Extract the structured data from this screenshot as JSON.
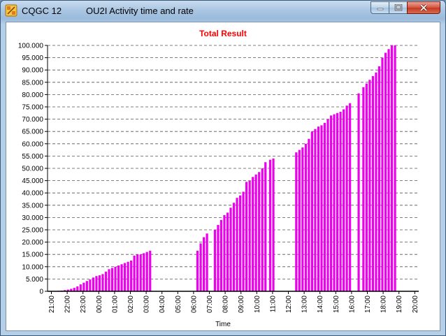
{
  "titlebar": {
    "app_title": "CQGC 12",
    "window_title": "OU2I Activity time and rate",
    "icons": {
      "app": "cqgc-app-icon",
      "minimize": "minimize-icon",
      "maximize": "maximize-icon",
      "close": "close-icon"
    }
  },
  "colors": {
    "bar": "#ee00ee",
    "title": "#ff0000",
    "grid": "#555555"
  },
  "chart_data": {
    "type": "bar",
    "title": "Total Result",
    "xlabel": "Time",
    "ylabel": "",
    "ylim": [
      0,
      100000
    ],
    "ytick_labels": [
      "0",
      "5.000",
      "10.000",
      "15.000",
      "20.000",
      "25.000",
      "30.000",
      "35.000",
      "40.000",
      "45.000",
      "50.000",
      "55.000",
      "60.000",
      "65.000",
      "70.000",
      "75.000",
      "80.000",
      "85.000",
      "90.000",
      "95.000",
      "100.000"
    ],
    "xtick_labels": [
      "21:00",
      "22:00",
      "23:00",
      "00:00",
      "01:00",
      "02:00",
      "03:00",
      "04:00",
      "05:00",
      "06:00",
      "07:00",
      "08:00",
      "09:00",
      "10:00",
      "11:00",
      "12:00",
      "13:00",
      "14:00",
      "15:00",
      "16:00",
      "17:00",
      "18:00",
      "19:00",
      "20:00"
    ],
    "grid": "horizontal dashed",
    "legend": "none",
    "x_unit_note": "hours after 21:00",
    "points": [
      [
        0.25,
        100
      ],
      [
        0.45,
        200
      ],
      [
        0.65,
        300
      ],
      [
        0.85,
        500
      ],
      [
        1.05,
        700
      ],
      [
        1.25,
        1000
      ],
      [
        1.45,
        1400
      ],
      [
        1.65,
        2000
      ],
      [
        1.85,
        2800
      ],
      [
        2.05,
        3500
      ],
      [
        2.25,
        4200
      ],
      [
        2.45,
        4800
      ],
      [
        2.65,
        5600
      ],
      [
        2.85,
        6200
      ],
      [
        3.05,
        6500
      ],
      [
        3.25,
        7000
      ],
      [
        3.45,
        8000
      ],
      [
        3.65,
        9000
      ],
      [
        3.85,
        9500
      ],
      [
        4.05,
        10000
      ],
      [
        4.25,
        10500
      ],
      [
        4.45,
        11000
      ],
      [
        4.65,
        11500
      ],
      [
        4.85,
        12000
      ],
      [
        5.05,
        12500
      ],
      [
        5.25,
        14500
      ],
      [
        5.45,
        15000
      ],
      [
        5.65,
        15000
      ],
      [
        5.85,
        15500
      ],
      [
        6.05,
        16000
      ],
      [
        6.25,
        16500
      ],
      [
        9.25,
        16500
      ],
      [
        9.45,
        19500
      ],
      [
        9.65,
        22000
      ],
      [
        9.85,
        23500
      ],
      [
        10.35,
        25000
      ],
      [
        10.55,
        27000
      ],
      [
        10.75,
        29000
      ],
      [
        10.95,
        31000
      ],
      [
        11.15,
        32000
      ],
      [
        11.35,
        34000
      ],
      [
        11.55,
        36000
      ],
      [
        11.75,
        38000
      ],
      [
        11.95,
        39000
      ],
      [
        12.15,
        40500
      ],
      [
        12.35,
        44500
      ],
      [
        12.55,
        45000
      ],
      [
        12.75,
        46500
      ],
      [
        12.95,
        47500
      ],
      [
        13.15,
        48500
      ],
      [
        13.35,
        50000
      ],
      [
        13.55,
        52500
      ],
      [
        13.85,
        53500
      ],
      [
        14.05,
        54000
      ],
      [
        15.5,
        56500
      ],
      [
        15.7,
        57500
      ],
      [
        15.9,
        58500
      ],
      [
        16.1,
        60000
      ],
      [
        16.3,
        62000
      ],
      [
        16.5,
        65000
      ],
      [
        16.7,
        66000
      ],
      [
        16.9,
        67000
      ],
      [
        17.1,
        67500
      ],
      [
        17.3,
        68500
      ],
      [
        17.5,
        70000
      ],
      [
        17.7,
        71500
      ],
      [
        17.9,
        72000
      ],
      [
        18.1,
        72500
      ],
      [
        18.3,
        73000
      ],
      [
        18.5,
        74000
      ],
      [
        18.7,
        75500
      ],
      [
        18.9,
        76500
      ],
      [
        19.45,
        80500
      ],
      [
        19.75,
        83000
      ],
      [
        19.95,
        84500
      ],
      [
        20.15,
        86000
      ],
      [
        20.35,
        87500
      ],
      [
        20.55,
        89000
      ],
      [
        20.75,
        91500
      ],
      [
        20.95,
        95000
      ],
      [
        21.15,
        97000
      ],
      [
        21.35,
        98500
      ],
      [
        21.55,
        100000
      ],
      [
        21.75,
        100000
      ]
    ]
  }
}
